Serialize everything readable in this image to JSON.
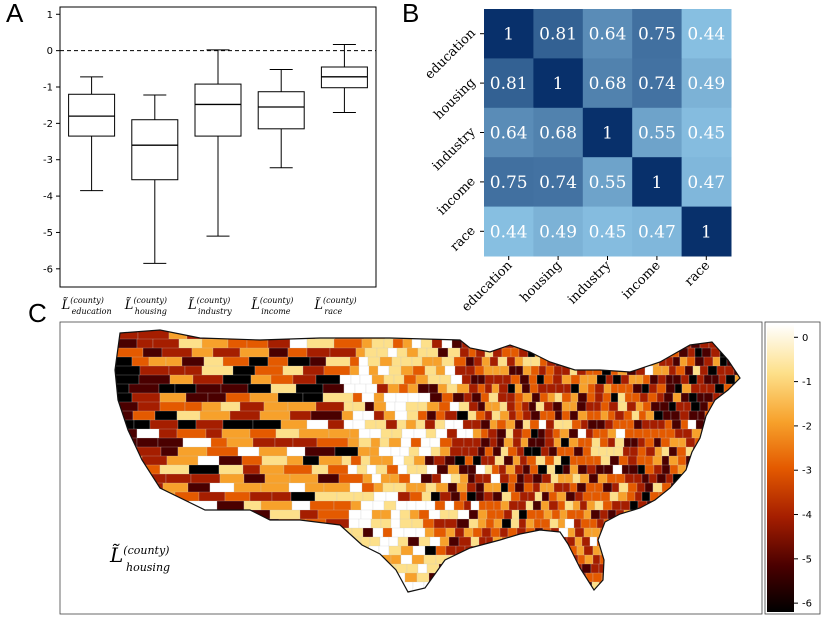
{
  "panels": {
    "a": "A",
    "b": "B",
    "c": "C"
  },
  "chart_data": [
    {
      "type": "box",
      "panel": "A",
      "ylim": [
        -6.5,
        1.2
      ],
      "yticks": [
        1,
        0,
        -1,
        -2,
        -3,
        -4,
        -5,
        -6
      ],
      "reference_line": 0,
      "series": [
        {
          "label_base": "L̃",
          "label_sup": "(county)",
          "label_sub": "education",
          "whisker_low": -3.85,
          "q1": -2.35,
          "median": -1.8,
          "q3": -1.2,
          "whisker_high": -0.72
        },
        {
          "label_base": "L̃",
          "label_sup": "(county)",
          "label_sub": "housing",
          "whisker_low": -5.85,
          "q1": -3.55,
          "median": -2.6,
          "q3": -1.9,
          "whisker_high": -1.22
        },
        {
          "label_base": "L̃",
          "label_sup": "(county)",
          "label_sub": "industry",
          "whisker_low": -5.1,
          "q1": -2.35,
          "median": -1.48,
          "q3": -0.92,
          "whisker_high": 0.02
        },
        {
          "label_base": "L̃",
          "label_sup": "(county)",
          "label_sub": "income",
          "whisker_low": -3.22,
          "q1": -2.15,
          "median": -1.55,
          "q3": -1.13,
          "whisker_high": -0.52
        },
        {
          "label_base": "L̃",
          "label_sup": "(county)",
          "label_sub": "race",
          "whisker_low": -1.7,
          "q1": -1.02,
          "median": -0.72,
          "q3": -0.45,
          "whisker_high": 0.17
        }
      ]
    },
    {
      "type": "heatmap",
      "panel": "B",
      "labels": [
        "education",
        "housing",
        "industry",
        "income",
        "race"
      ],
      "values": [
        [
          "1",
          "0.81",
          "0.64",
          "0.75",
          "0.44"
        ],
        [
          "0.81",
          "1",
          "0.68",
          "0.74",
          "0.49"
        ],
        [
          "0.64",
          "0.68",
          "1",
          "0.55",
          "0.45"
        ],
        [
          "0.75",
          "0.74",
          "0.55",
          "1",
          "0.47"
        ],
        [
          "0.44",
          "0.49",
          "0.45",
          "0.47",
          "1"
        ]
      ],
      "colors": {
        "low": "#87bfe1",
        "high": "#08306b"
      }
    },
    {
      "type": "choropleth",
      "panel": "C",
      "label_base": "L̃",
      "label_sup": "(county)",
      "label_sub": "housing",
      "colorbar_ticks": [
        0,
        -1,
        -2,
        -3,
        -4,
        -5,
        -6
      ],
      "colorbar_range": [
        -6.2,
        0.3
      ],
      "colormap": [
        "#000000",
        "#4a0000",
        "#a51e00",
        "#e45a00",
        "#f7a12b",
        "#fde08a",
        "#ffffff"
      ]
    }
  ]
}
